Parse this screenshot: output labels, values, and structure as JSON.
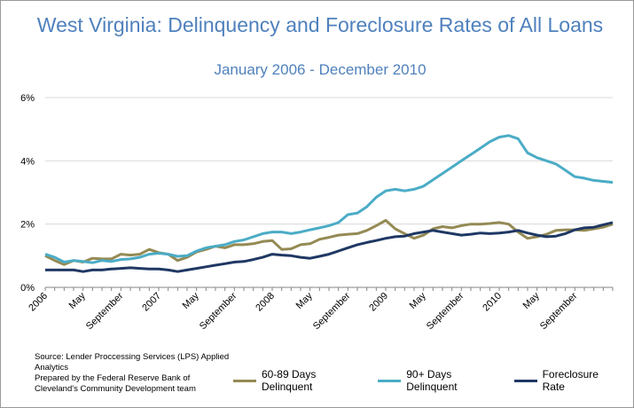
{
  "chart_data": {
    "type": "line",
    "title": "West Virginia: Delinquency and Foreclosure Rates of All Loans",
    "subtitle": "January 2006 - December 2010",
    "ylim": [
      0,
      6
    ],
    "yticks": [
      "0%",
      "2%",
      "4%",
      "6%"
    ],
    "grid": true,
    "x_tick_labels": [
      {
        "index": 0,
        "label": "2006"
      },
      {
        "index": 4,
        "label": "May"
      },
      {
        "index": 8,
        "label": "September"
      },
      {
        "index": 12,
        "label": "2007"
      },
      {
        "index": 16,
        "label": "May"
      },
      {
        "index": 20,
        "label": "September"
      },
      {
        "index": 24,
        "label": "2008"
      },
      {
        "index": 28,
        "label": "May"
      },
      {
        "index": 32,
        "label": "September"
      },
      {
        "index": 36,
        "label": "2009"
      },
      {
        "index": 40,
        "label": "May"
      },
      {
        "index": 44,
        "label": "September"
      },
      {
        "index": 48,
        "label": "2010"
      },
      {
        "index": 52,
        "label": "May"
      },
      {
        "index": 56,
        "label": "September"
      }
    ],
    "legend_position": "bottom-right",
    "series": [
      {
        "name": "60-89 Days Delinquent",
        "color": "#948a54",
        "values": [
          1.0,
          0.85,
          0.72,
          0.85,
          0.8,
          0.92,
          0.9,
          0.9,
          1.05,
          1.02,
          1.05,
          1.2,
          1.1,
          1.05,
          0.85,
          0.95,
          1.12,
          1.2,
          1.3,
          1.25,
          1.35,
          1.35,
          1.38,
          1.45,
          1.48,
          1.2,
          1.22,
          1.35,
          1.38,
          1.52,
          1.58,
          1.65,
          1.68,
          1.7,
          1.8,
          1.95,
          2.12,
          1.85,
          1.7,
          1.55,
          1.65,
          1.85,
          1.92,
          1.88,
          1.95,
          2.0,
          2.0,
          2.02,
          2.05,
          2.0,
          1.75,
          1.55,
          1.6,
          1.68,
          1.8,
          1.82,
          1.82,
          1.8,
          1.85,
          1.9,
          2.0
        ]
      },
      {
        "name": "90+ Days Delinquent",
        "color": "#4bacc6",
        "values": [
          1.05,
          0.95,
          0.8,
          0.85,
          0.82,
          0.78,
          0.85,
          0.82,
          0.88,
          0.9,
          0.95,
          1.05,
          1.08,
          1.05,
          0.98,
          1.0,
          1.15,
          1.25,
          1.3,
          1.35,
          1.45,
          1.5,
          1.6,
          1.7,
          1.75,
          1.75,
          1.7,
          1.75,
          1.82,
          1.88,
          1.95,
          2.05,
          2.3,
          2.35,
          2.55,
          2.85,
          3.05,
          3.1,
          3.05,
          3.1,
          3.2,
          3.4,
          3.6,
          3.8,
          4.0,
          4.2,
          4.4,
          4.6,
          4.75,
          4.8,
          4.7,
          4.25,
          4.1,
          4.0,
          3.9,
          3.7,
          3.5,
          3.45,
          3.38,
          3.35,
          3.32
        ]
      },
      {
        "name": "Foreclosure Rate",
        "color": "#1f3864",
        "values": [
          0.55,
          0.55,
          0.55,
          0.55,
          0.5,
          0.55,
          0.55,
          0.58,
          0.6,
          0.62,
          0.6,
          0.58,
          0.58,
          0.55,
          0.5,
          0.55,
          0.6,
          0.65,
          0.7,
          0.75,
          0.8,
          0.82,
          0.88,
          0.95,
          1.05,
          1.02,
          1.0,
          0.95,
          0.92,
          0.98,
          1.05,
          1.15,
          1.25,
          1.35,
          1.42,
          1.48,
          1.55,
          1.6,
          1.62,
          1.7,
          1.75,
          1.8,
          1.75,
          1.7,
          1.65,
          1.68,
          1.72,
          1.7,
          1.72,
          1.75,
          1.8,
          1.72,
          1.65,
          1.6,
          1.62,
          1.7,
          1.82,
          1.88,
          1.9,
          1.98,
          2.05
        ]
      }
    ]
  },
  "source_text": "Source: Lender Proccessing Services (LPS) Applied Analytics\nPrepared by the Federal Reserve Bank of Cleveland's Community Development team"
}
